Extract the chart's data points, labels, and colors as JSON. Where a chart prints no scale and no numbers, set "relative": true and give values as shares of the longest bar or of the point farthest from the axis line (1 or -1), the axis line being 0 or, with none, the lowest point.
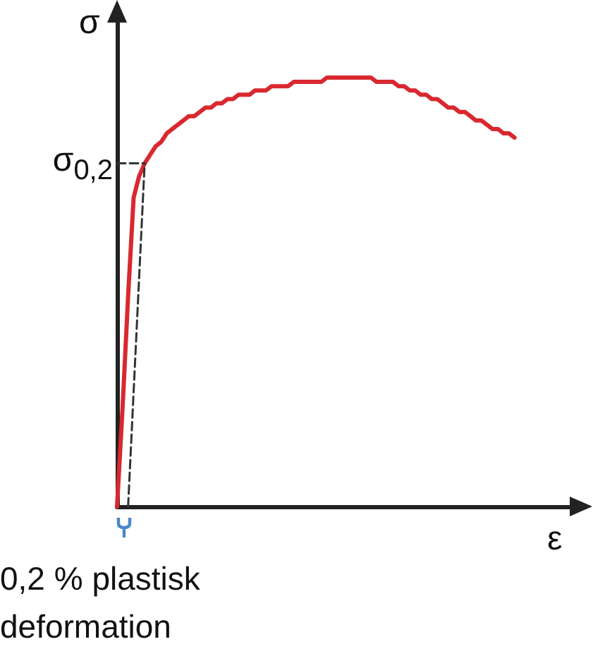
{
  "chart_data": {
    "type": "line",
    "relative": true,
    "xlabel": "ε",
    "ylabel": "σ",
    "categories": [
      null,
      null,
      null,
      null,
      null,
      null,
      null,
      null,
      null,
      null,
      null,
      null,
      null,
      null,
      null,
      null,
      null,
      null,
      null,
      null,
      null,
      null,
      null,
      null,
      null,
      null,
      null,
      null,
      null,
      null,
      null,
      null,
      null,
      null,
      null,
      null,
      null,
      null,
      null,
      null,
      null,
      null,
      null,
      null,
      null,
      null,
      null,
      null,
      null,
      null,
      null,
      null,
      null,
      null,
      null,
      null,
      null,
      null,
      null,
      null,
      null,
      null,
      null,
      null,
      null,
      null,
      null,
      null,
      null,
      null,
      null,
      null,
      null,
      null,
      null,
      null,
      null,
      null,
      null,
      null,
      null,
      null,
      null
    ],
    "series": [
      {
        "color": "#d9282f",
        "line_style": "solid",
        "values": [
          0,
          0.23,
          0.49,
          0.72,
          0.77,
          0.8,
          0.82,
          0.84,
          0.85,
          0.87,
          0.88,
          0.89,
          0.9,
          0.91,
          0.91,
          0.92,
          0.93,
          0.93,
          0.94,
          0.94,
          0.95,
          0.95,
          0.96,
          0.96,
          0.96,
          0.97,
          0.97,
          0.97,
          0.98,
          0.98,
          0.98,
          0.98,
          0.99,
          0.99,
          0.99,
          0.99,
          0.99,
          0.99,
          1.0,
          1.0,
          1.0,
          1.0,
          1.0,
          1.0,
          1.0,
          1.0,
          1.0,
          0.99,
          0.99,
          0.99,
          0.99,
          0.98,
          0.98,
          0.97,
          0.97,
          0.96,
          0.96,
          0.95,
          0.95,
          0.94,
          0.93,
          0.93,
          0.92,
          0.92,
          0.91,
          0.9,
          0.9,
          0.89,
          0.88,
          0.88,
          0.87,
          0.87,
          0.86,
          null,
          null,
          null,
          null,
          null,
          null,
          null,
          null,
          null,
          null
        ]
      },
      {
        "color": "#333333",
        "line_style": "dashed",
        "values": [
          0.8,
          null,
          null,
          null,
          null,
          0.8,
          null,
          null,
          null,
          null,
          null,
          null,
          null,
          null,
          null,
          null,
          null,
          null,
          null,
          null,
          null,
          null,
          null,
          null,
          null,
          null,
          null,
          null,
          null,
          null,
          null,
          null,
          null,
          null,
          null,
          null,
          null,
          null,
          null,
          null,
          null,
          null,
          null,
          null,
          null,
          null,
          null,
          null,
          null,
          null,
          null,
          null,
          null,
          null,
          null,
          null,
          null,
          null,
          null,
          null,
          null,
          null,
          null,
          null,
          null,
          null,
          null,
          null,
          null,
          null,
          null,
          null,
          null,
          null,
          null,
          null,
          null,
          null,
          null,
          null,
          null,
          null,
          null
        ]
      },
      {
        "color": "#333333",
        "line_style": "dashed",
        "values": [
          null,
          null,
          0,
          null,
          null,
          0.8,
          null,
          null,
          null,
          null,
          null,
          null,
          null,
          null,
          null,
          null,
          null,
          null,
          null,
          null,
          null,
          null,
          null,
          null,
          null,
          null,
          null,
          null,
          null,
          null,
          null,
          null,
          null,
          null,
          null,
          null,
          null,
          null,
          null,
          null,
          null,
          null,
          null,
          null,
          null,
          null,
          null,
          null,
          null,
          null,
          null,
          null,
          null,
          null,
          null,
          null,
          null,
          null,
          null,
          null,
          null,
          null,
          null,
          null,
          null,
          null,
          null,
          null,
          null,
          null,
          null,
          null,
          null,
          null,
          null,
          null,
          null,
          null,
          null,
          null,
          null,
          null,
          null
        ]
      }
    ],
    "annotations": [
      "σ$_{0,2}$",
      "0,2 % plastisk deformation"
    ],
    "marker": "none",
    "grid": false
  }
}
